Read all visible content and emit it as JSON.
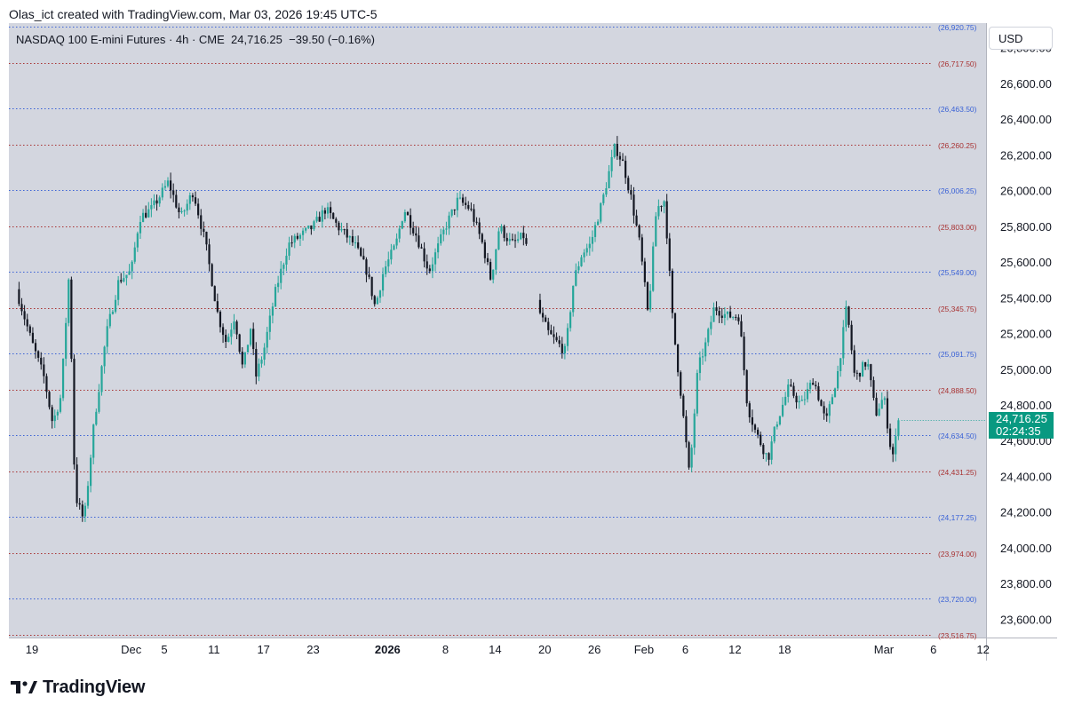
{
  "header": {
    "attribution": "Olas_ict created with TradingView.com, Mar 03, 2026 19:45 UTC-5"
  },
  "symbol": {
    "name": "NASDAQ 100 E-mini Futures · 4h · CME",
    "last": "24,716.25",
    "change": "−39.50 (−0.16%)"
  },
  "currency_button": {
    "label": "USD"
  },
  "price_tag": {
    "price": "24,716.25",
    "countdown": "02:24:35"
  },
  "brand": {
    "name": "TradingView"
  },
  "colors": {
    "plot_bg": "#d3d6df",
    "up": "#26a69a",
    "down": "#131722",
    "blue_level": "#3a62d6",
    "red_level": "#a83232",
    "price_tag": "#089981"
  },
  "chart_data": {
    "type": "candlestick",
    "timeframe": "4h",
    "ylim": [
      23500,
      26940
    ],
    "y_ticks": [
      "23,600.00",
      "23,800.00",
      "24,000.00",
      "24,200.00",
      "24,400.00",
      "24,600.00",
      "24,800.00",
      "25,000.00",
      "25,200.00",
      "25,400.00",
      "25,600.00",
      "25,800.00",
      "26,000.00",
      "26,200.00",
      "26,400.00",
      "26,600.00",
      "26,800.00"
    ],
    "y_tick_values": [
      23600,
      23800,
      24000,
      24200,
      24400,
      24600,
      24800,
      25000,
      25200,
      25400,
      25600,
      25800,
      26000,
      26200,
      26400,
      26600,
      26800
    ],
    "x_ticks": [
      {
        "label": "19",
        "day": 0,
        "bold": false
      },
      {
        "label": "Dec",
        "day": 12,
        "bold": false
      },
      {
        "label": "5",
        "day": 16,
        "bold": false
      },
      {
        "label": "11",
        "day": 22,
        "bold": false
      },
      {
        "label": "17",
        "day": 28,
        "bold": false
      },
      {
        "label": "23",
        "day": 34,
        "bold": false
      },
      {
        "label": "2026",
        "day": 43,
        "bold": true
      },
      {
        "label": "8",
        "day": 50,
        "bold": false
      },
      {
        "label": "14",
        "day": 56,
        "bold": false
      },
      {
        "label": "20",
        "day": 62,
        "bold": false
      },
      {
        "label": "26",
        "day": 68,
        "bold": false
      },
      {
        "label": "Feb",
        "day": 74,
        "bold": false
      },
      {
        "label": "6",
        "day": 79,
        "bold": false
      },
      {
        "label": "12",
        "day": 85,
        "bold": false
      },
      {
        "label": "18",
        "day": 91,
        "bold": false
      },
      {
        "label": "Mar",
        "day": 103,
        "bold": false
      },
      {
        "label": "6",
        "day": 109,
        "bold": false
      },
      {
        "label": "12",
        "day": 115,
        "bold": false
      }
    ],
    "levels": [
      {
        "value": 26920.75,
        "label": "(26,920.75)",
        "color": "blue"
      },
      {
        "value": 26717.5,
        "label": "(26,717.50)",
        "color": "red"
      },
      {
        "value": 26463.5,
        "label": "(26,463.50)",
        "color": "blue"
      },
      {
        "value": 26260.25,
        "label": "(26,260.25)",
        "color": "red"
      },
      {
        "value": 26006.25,
        "label": "(26,006.25)",
        "color": "blue"
      },
      {
        "value": 25803.0,
        "label": "(25,803.00)",
        "color": "red"
      },
      {
        "value": 25549.0,
        "label": "(25,549.00)",
        "color": "blue"
      },
      {
        "value": 25345.75,
        "label": "(25,345.75)",
        "color": "red"
      },
      {
        "value": 25091.75,
        "label": "(25,091.75)",
        "color": "blue"
      },
      {
        "value": 24888.5,
        "label": "(24,888.50)",
        "color": "red"
      },
      {
        "value": 24634.5,
        "label": "(24,634.50)",
        "color": "blue"
      },
      {
        "value": 24431.25,
        "label": "(24,431.25)",
        "color": "red"
      },
      {
        "value": 24177.25,
        "label": "(24,177.25)",
        "color": "blue"
      },
      {
        "value": 23974.0,
        "label": "(23,974.00)",
        "color": "red"
      },
      {
        "value": 23720.0,
        "label": "(23,720.00)",
        "color": "blue"
      },
      {
        "value": 23516.75,
        "label": "(23,516.75)",
        "color": "red"
      }
    ],
    "last_price": 24716.25,
    "path": [
      [
        -1.9,
        25450
      ],
      [
        0,
        25150
      ],
      [
        1.5,
        24950
      ],
      [
        2.5,
        24700
      ],
      [
        3.5,
        24850
      ],
      [
        4.5,
        25550
      ],
      [
        5.2,
        24300
      ],
      [
        6.3,
        24150
      ],
      [
        7.5,
        24700
      ],
      [
        9,
        25200
      ],
      [
        10.5,
        25500
      ],
      [
        12,
        25550
      ],
      [
        13,
        25850
      ],
      [
        14.5,
        25900
      ],
      [
        16.5,
        26050
      ],
      [
        18,
        25850
      ],
      [
        19.5,
        26000
      ],
      [
        21,
        25700
      ],
      [
        22.5,
        25300
      ],
      [
        23.5,
        25150
      ],
      [
        24.5,
        25300
      ],
      [
        25.5,
        25000
      ],
      [
        26.5,
        25250
      ],
      [
        27,
        24950
      ],
      [
        28,
        25100
      ],
      [
        29.5,
        25450
      ],
      [
        31,
        25700
      ],
      [
        32.5,
        25750
      ],
      [
        34,
        25800
      ],
      [
        35.5,
        25900
      ],
      [
        37,
        25800
      ],
      [
        39,
        25700
      ],
      [
        40.5,
        25550
      ],
      [
        41.5,
        25350
      ],
      [
        42.5,
        25550
      ],
      [
        44,
        25700
      ],
      [
        45,
        25900
      ],
      [
        46.5,
        25750
      ],
      [
        48,
        25550
      ],
      [
        50,
        25800
      ],
      [
        51.5,
        25950
      ],
      [
        53,
        25900
      ],
      [
        54.5,
        25700
      ],
      [
        55.5,
        25500
      ],
      [
        56.5,
        25800
      ],
      [
        58,
        25700
      ],
      [
        59.5,
        25750
      ],
      [
        61.5,
        25300
      ],
      [
        62.5,
        25200
      ],
      [
        63.5,
        25150
      ],
      [
        64.5,
        25100
      ],
      [
        65.5,
        25500
      ],
      [
        66.5,
        25650
      ],
      [
        67.5,
        25700
      ],
      [
        69,
        25950
      ],
      [
        70.5,
        26250
      ],
      [
        71.5,
        26150
      ],
      [
        72.5,
        25950
      ],
      [
        73.5,
        25700
      ],
      [
        74.5,
        25300
      ],
      [
        75.5,
        25900
      ],
      [
        76.5,
        25950
      ],
      [
        77.5,
        25250
      ],
      [
        78.5,
        24850
      ],
      [
        79.5,
        24400
      ],
      [
        80.5,
        25000
      ],
      [
        81.5,
        25150
      ],
      [
        82.5,
        25350
      ],
      [
        84,
        25300
      ],
      [
        85.5,
        25300
      ],
      [
        86.5,
        24800
      ],
      [
        87.5,
        24650
      ],
      [
        89,
        24500
      ],
      [
        90,
        24700
      ],
      [
        91.5,
        24900
      ],
      [
        93,
        24800
      ],
      [
        94.5,
        24950
      ],
      [
        96,
        24700
      ],
      [
        97.5,
        25000
      ],
      [
        98.5,
        25350
      ],
      [
        99.5,
        24950
      ],
      [
        101,
        25050
      ],
      [
        102,
        24750
      ],
      [
        103,
        24850
      ],
      [
        104,
        24500
      ],
      [
        104.8,
        24700
      ]
    ],
    "gaps": [
      [
        59.8,
        61.4
      ]
    ]
  }
}
